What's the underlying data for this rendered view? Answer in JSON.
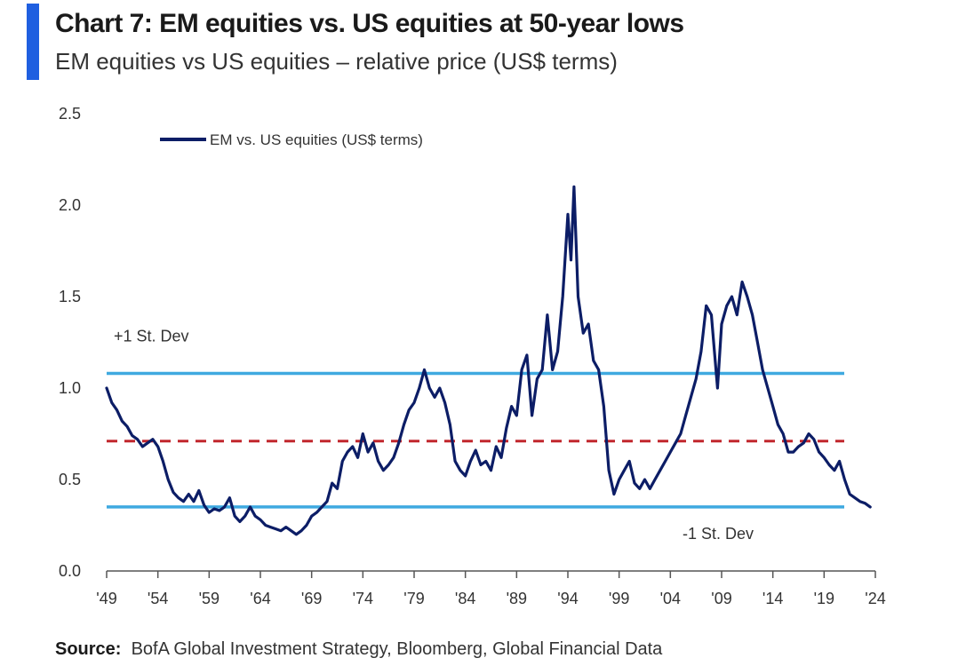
{
  "colors": {
    "accent_bar": "#1f5fe0",
    "series_line": "#0c1d66",
    "std_band": "#3fa9e0",
    "mean_line": "#c1272d",
    "axis": "#333333"
  },
  "chart_data": {
    "type": "line",
    "title": "Chart 7: EM equities vs. US equities at 50-year lows",
    "subtitle": "EM equities vs US equities – relative price (US$ terms)",
    "xlabel": "",
    "ylabel": "",
    "xlim": [
      1949,
      2024
    ],
    "ylim": [
      0.0,
      2.5
    ],
    "x_ticks": [
      "'49",
      "'54",
      "'59",
      "'64",
      "'69",
      "'74",
      "'79",
      "'84",
      "'89",
      "'94",
      "'99",
      "'04",
      "'09",
      "'14",
      "'19",
      "'24"
    ],
    "y_ticks": [
      "0.0",
      "0.5",
      "1.0",
      "1.5",
      "2.0",
      "2.5"
    ],
    "grid": false,
    "legend_position": "top-left",
    "series": [
      {
        "name": "EM vs. US equities (US$ terms)",
        "points": [
          [
            1949.0,
            1.0
          ],
          [
            1949.5,
            0.92
          ],
          [
            1950.0,
            0.88
          ],
          [
            1950.5,
            0.82
          ],
          [
            1951.0,
            0.79
          ],
          [
            1951.5,
            0.74
          ],
          [
            1952.0,
            0.72
          ],
          [
            1952.5,
            0.68
          ],
          [
            1953.0,
            0.7
          ],
          [
            1953.5,
            0.72
          ],
          [
            1954.0,
            0.68
          ],
          [
            1954.5,
            0.6
          ],
          [
            1955.0,
            0.5
          ],
          [
            1955.5,
            0.43
          ],
          [
            1956.0,
            0.4
          ],
          [
            1956.5,
            0.38
          ],
          [
            1957.0,
            0.42
          ],
          [
            1957.5,
            0.38
          ],
          [
            1958.0,
            0.44
          ],
          [
            1958.5,
            0.36
          ],
          [
            1959.0,
            0.32
          ],
          [
            1959.5,
            0.34
          ],
          [
            1960.0,
            0.33
          ],
          [
            1960.5,
            0.35
          ],
          [
            1961.0,
            0.4
          ],
          [
            1961.5,
            0.3
          ],
          [
            1962.0,
            0.27
          ],
          [
            1962.5,
            0.3
          ],
          [
            1963.0,
            0.35
          ],
          [
            1963.5,
            0.3
          ],
          [
            1964.0,
            0.28
          ],
          [
            1964.5,
            0.25
          ],
          [
            1965.0,
            0.24
          ],
          [
            1965.5,
            0.23
          ],
          [
            1966.0,
            0.22
          ],
          [
            1966.5,
            0.24
          ],
          [
            1967.0,
            0.22
          ],
          [
            1967.5,
            0.2
          ],
          [
            1968.0,
            0.22
          ],
          [
            1968.5,
            0.25
          ],
          [
            1969.0,
            0.3
          ],
          [
            1969.5,
            0.32
          ],
          [
            1970.0,
            0.35
          ],
          [
            1970.5,
            0.38
          ],
          [
            1971.0,
            0.48
          ],
          [
            1971.5,
            0.45
          ],
          [
            1972.0,
            0.6
          ],
          [
            1972.5,
            0.65
          ],
          [
            1973.0,
            0.68
          ],
          [
            1973.5,
            0.62
          ],
          [
            1974.0,
            0.75
          ],
          [
            1974.5,
            0.65
          ],
          [
            1975.0,
            0.7
          ],
          [
            1975.5,
            0.6
          ],
          [
            1976.0,
            0.55
          ],
          [
            1976.5,
            0.58
          ],
          [
            1977.0,
            0.62
          ],
          [
            1977.5,
            0.7
          ],
          [
            1978.0,
            0.8
          ],
          [
            1978.5,
            0.88
          ],
          [
            1979.0,
            0.92
          ],
          [
            1979.5,
            1.0
          ],
          [
            1980.0,
            1.1
          ],
          [
            1980.5,
            1.0
          ],
          [
            1981.0,
            0.95
          ],
          [
            1981.5,
            1.0
          ],
          [
            1982.0,
            0.92
          ],
          [
            1982.5,
            0.8
          ],
          [
            1983.0,
            0.6
          ],
          [
            1983.5,
            0.55
          ],
          [
            1984.0,
            0.52
          ],
          [
            1984.5,
            0.6
          ],
          [
            1985.0,
            0.66
          ],
          [
            1985.5,
            0.58
          ],
          [
            1986.0,
            0.6
          ],
          [
            1986.5,
            0.55
          ],
          [
            1987.0,
            0.68
          ],
          [
            1987.5,
            0.62
          ],
          [
            1988.0,
            0.78
          ],
          [
            1988.5,
            0.9
          ],
          [
            1989.0,
            0.85
          ],
          [
            1989.5,
            1.1
          ],
          [
            1990.0,
            1.18
          ],
          [
            1990.5,
            0.85
          ],
          [
            1991.0,
            1.05
          ],
          [
            1991.5,
            1.1
          ],
          [
            1992.0,
            1.4
          ],
          [
            1992.5,
            1.1
          ],
          [
            1993.0,
            1.2
          ],
          [
            1993.5,
            1.5
          ],
          [
            1994.0,
            1.95
          ],
          [
            1994.3,
            1.7
          ],
          [
            1994.6,
            2.1
          ],
          [
            1995.0,
            1.5
          ],
          [
            1995.5,
            1.3
          ],
          [
            1996.0,
            1.35
          ],
          [
            1996.5,
            1.15
          ],
          [
            1997.0,
            1.1
          ],
          [
            1997.5,
            0.9
          ],
          [
            1998.0,
            0.55
          ],
          [
            1998.5,
            0.42
          ],
          [
            1999.0,
            0.5
          ],
          [
            1999.5,
            0.55
          ],
          [
            2000.0,
            0.6
          ],
          [
            2000.5,
            0.48
          ],
          [
            2001.0,
            0.45
          ],
          [
            2001.5,
            0.5
          ],
          [
            2002.0,
            0.45
          ],
          [
            2002.5,
            0.5
          ],
          [
            2003.0,
            0.55
          ],
          [
            2003.5,
            0.6
          ],
          [
            2004.0,
            0.65
          ],
          [
            2004.5,
            0.7
          ],
          [
            2005.0,
            0.75
          ],
          [
            2005.5,
            0.85
          ],
          [
            2006.0,
            0.95
          ],
          [
            2006.5,
            1.05
          ],
          [
            2007.0,
            1.2
          ],
          [
            2007.5,
            1.45
          ],
          [
            2008.0,
            1.4
          ],
          [
            2008.3,
            1.2
          ],
          [
            2008.6,
            1.0
          ],
          [
            2009.0,
            1.35
          ],
          [
            2009.5,
            1.45
          ],
          [
            2010.0,
            1.5
          ],
          [
            2010.5,
            1.4
          ],
          [
            2011.0,
            1.58
          ],
          [
            2011.5,
            1.5
          ],
          [
            2012.0,
            1.4
          ],
          [
            2012.5,
            1.25
          ],
          [
            2013.0,
            1.1
          ],
          [
            2013.5,
            1.0
          ],
          [
            2014.0,
            0.9
          ],
          [
            2014.5,
            0.8
          ],
          [
            2015.0,
            0.75
          ],
          [
            2015.5,
            0.65
          ],
          [
            2016.0,
            0.65
          ],
          [
            2016.5,
            0.68
          ],
          [
            2017.0,
            0.7
          ],
          [
            2017.5,
            0.75
          ],
          [
            2018.0,
            0.72
          ],
          [
            2018.5,
            0.65
          ],
          [
            2019.0,
            0.62
          ],
          [
            2019.5,
            0.58
          ],
          [
            2020.0,
            0.55
          ],
          [
            2020.5,
            0.6
          ],
          [
            2021.0,
            0.5
          ],
          [
            2021.5,
            0.42
          ],
          [
            2022.0,
            0.4
          ],
          [
            2022.5,
            0.38
          ],
          [
            2023.0,
            0.37
          ],
          [
            2023.5,
            0.35
          ]
        ]
      }
    ],
    "reference_lines": [
      {
        "id": "plus_1_sd",
        "value": 1.08,
        "style": "solid",
        "label": "+1 St. Dev"
      },
      {
        "id": "mean",
        "value": 0.71,
        "style": "dashed",
        "label": ""
      },
      {
        "id": "minus_1_sd",
        "value": 0.35,
        "style": "solid",
        "label": "-1 St. Dev"
      }
    ]
  },
  "source": {
    "label": "Source:",
    "text": "BofA Global Investment Strategy, Bloomberg, Global Financial Data"
  }
}
